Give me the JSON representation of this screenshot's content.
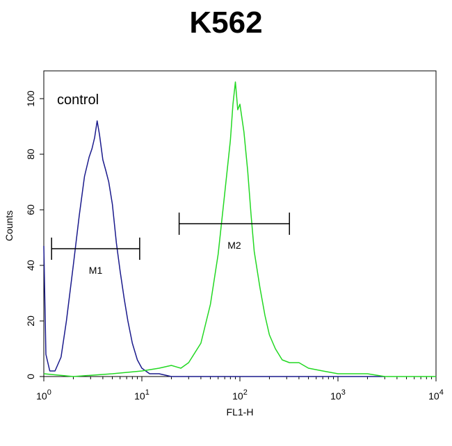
{
  "chart_data": {
    "type": "line",
    "title": "K562",
    "xlabel": "FL1-H",
    "ylabel": "Counts",
    "x_scale": "log",
    "xlim": [
      1,
      10000
    ],
    "ylim": [
      0,
      110
    ],
    "x_ticks": [
      {
        "value": 1,
        "base": "10",
        "exp": "0"
      },
      {
        "value": 10,
        "base": "10",
        "exp": "1"
      },
      {
        "value": 100,
        "base": "10",
        "exp": "2"
      },
      {
        "value": 1000,
        "base": "10",
        "exp": "3"
      },
      {
        "value": 10000,
        "base": "10",
        "exp": "4"
      }
    ],
    "y_ticks": [
      0,
      20,
      40,
      60,
      80,
      100
    ],
    "grid": false,
    "annotation": "control",
    "series": [
      {
        "color": "#1a1a8c",
        "points": [
          [
            1.0,
            47
          ],
          [
            1.05,
            8
          ],
          [
            1.15,
            2
          ],
          [
            1.3,
            2
          ],
          [
            1.5,
            7
          ],
          [
            1.7,
            20
          ],
          [
            2.0,
            40
          ],
          [
            2.3,
            58
          ],
          [
            2.6,
            72
          ],
          [
            2.9,
            79
          ],
          [
            3.1,
            82
          ],
          [
            3.3,
            86
          ],
          [
            3.5,
            92
          ],
          [
            3.7,
            87
          ],
          [
            4.0,
            78
          ],
          [
            4.3,
            74
          ],
          [
            4.6,
            70
          ],
          [
            5.0,
            62
          ],
          [
            5.5,
            48
          ],
          [
            6.0,
            38
          ],
          [
            6.6,
            28
          ],
          [
            7.2,
            20
          ],
          [
            8.0,
            12
          ],
          [
            9.0,
            6
          ],
          [
            10,
            3
          ],
          [
            12,
            1
          ],
          [
            15,
            1
          ],
          [
            20,
            0
          ],
          [
            50,
            0
          ],
          [
            100,
            0
          ],
          [
            300,
            0
          ],
          [
            1000,
            0
          ],
          [
            2500,
            0
          ],
          [
            3000,
            0
          ]
        ]
      },
      {
        "color": "#22d822",
        "points": [
          [
            1.0,
            1
          ],
          [
            2.0,
            0
          ],
          [
            5.0,
            1
          ],
          [
            10,
            2
          ],
          [
            15,
            3
          ],
          [
            20,
            4
          ],
          [
            25,
            3
          ],
          [
            30,
            5
          ],
          [
            40,
            12
          ],
          [
            50,
            26
          ],
          [
            60,
            44
          ],
          [
            70,
            66
          ],
          [
            80,
            85
          ],
          [
            85,
            98
          ],
          [
            90,
            106
          ],
          [
            95,
            96
          ],
          [
            100,
            98
          ],
          [
            110,
            88
          ],
          [
            120,
            74
          ],
          [
            130,
            58
          ],
          [
            140,
            45
          ],
          [
            160,
            32
          ],
          [
            180,
            22
          ],
          [
            200,
            15
          ],
          [
            230,
            10
          ],
          [
            270,
            6
          ],
          [
            320,
            5
          ],
          [
            400,
            5
          ],
          [
            500,
            3
          ],
          [
            700,
            2
          ],
          [
            1000,
            1
          ],
          [
            1500,
            1
          ],
          [
            2000,
            1
          ],
          [
            3000,
            0
          ],
          [
            5000,
            0
          ],
          [
            10000,
            0
          ]
        ]
      }
    ],
    "markers": [
      {
        "label": "M1",
        "x_start": 1.2,
        "x_end": 9.5,
        "y": 46
      },
      {
        "label": "M2",
        "x_start": 24,
        "x_end": 320,
        "y": 55
      }
    ]
  }
}
